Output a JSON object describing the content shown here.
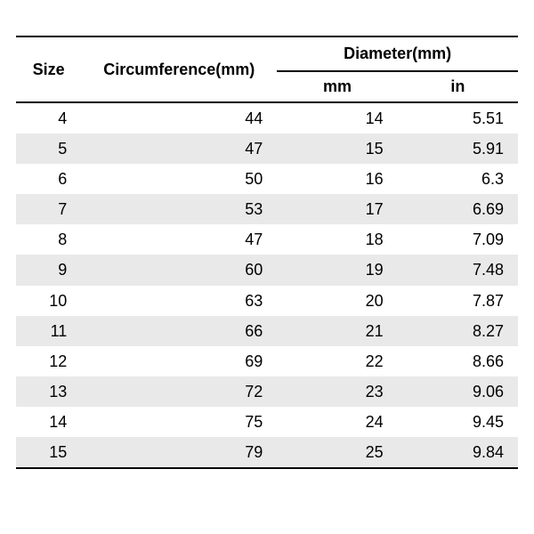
{
  "table": {
    "type": "table",
    "background_color": "#ffffff",
    "stripe_color": "#e9e9e9",
    "border_color": "#000000",
    "font_family": "Arial",
    "header_fontsize": 18,
    "cell_fontsize": 18,
    "columns": {
      "size": {
        "label": "Size",
        "width_pct": 13,
        "align": "right"
      },
      "circ": {
        "label": "Circumference(mm)",
        "width_pct": 39,
        "align": "right"
      },
      "diam_group": {
        "label": "Diameter(mm)"
      },
      "mm": {
        "label": "mm",
        "width_pct": 24,
        "align": "right"
      },
      "in": {
        "label": "in",
        "width_pct": 24,
        "align": "right"
      }
    },
    "rows": [
      {
        "size": "4",
        "circ": "44",
        "mm": "14",
        "in": "5.51",
        "stripe": false
      },
      {
        "size": "5",
        "circ": "47",
        "mm": "15",
        "in": "5.91",
        "stripe": true
      },
      {
        "size": "6",
        "circ": "50",
        "mm": "16",
        "in": "6.3",
        "stripe": false
      },
      {
        "size": "7",
        "circ": "53",
        "mm": "17",
        "in": "6.69",
        "stripe": true
      },
      {
        "size": "8",
        "circ": "47",
        "mm": "18",
        "in": "7.09",
        "stripe": false
      },
      {
        "size": "9",
        "circ": "60",
        "mm": "19",
        "in": "7.48",
        "stripe": true
      },
      {
        "size": "10",
        "circ": "63",
        "mm": "20",
        "in": "7.87",
        "stripe": false
      },
      {
        "size": "11",
        "circ": "66",
        "mm": "21",
        "in": "8.27",
        "stripe": true
      },
      {
        "size": "12",
        "circ": "69",
        "mm": "22",
        "in": "8.66",
        "stripe": false
      },
      {
        "size": "13",
        "circ": "72",
        "mm": "23",
        "in": "9.06",
        "stripe": true
      },
      {
        "size": "14",
        "circ": "75",
        "mm": "24",
        "in": "9.45",
        "stripe": false
      },
      {
        "size": "15",
        "circ": "79",
        "mm": "25",
        "in": "9.84",
        "stripe": true
      }
    ]
  }
}
